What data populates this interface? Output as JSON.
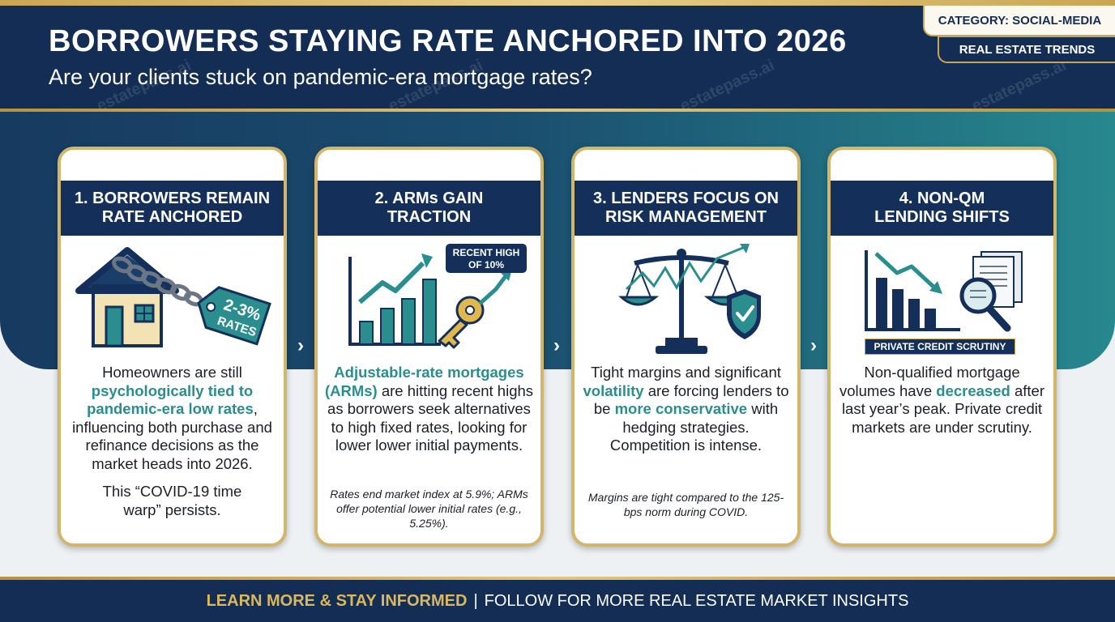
{
  "header": {
    "title": "BORROWERS STAYING RATE ANCHORED INTO 2026",
    "subtitle": "Are your clients stuck on pandemic-era mortgage rates?",
    "category": "CATEGORY: SOCIAL-MEDIA",
    "tag": "REAL ESTATE TRENDS"
  },
  "watermark": "estatepass.ai",
  "cards": [
    {
      "title_line1": "1. BORROWERS REMAIN",
      "title_line2": "RATE ANCHORED",
      "icon": "house-chain-tag-icon",
      "tag_line1": "2-3%",
      "tag_line2": "RATES",
      "body_pre": "Homeowners are still ",
      "body_hl": "psychologically tied to pandemic-era low rates",
      "body_post": ", influencing both purchase and refinance decisions as the market heads into 2026.",
      "extra": "This “COVID-19 time warp” persists."
    },
    {
      "title_line1": "2. ARMs GAIN",
      "title_line2": "TRACTION",
      "icon": "rising-chart-key-icon",
      "badge_line1": "RECENT HIGH",
      "badge_line2": "OF 10%",
      "body_hl": "Adjustable-rate mortgages (ARMs)",
      "body_post": " are hitting recent highs as borrowers seek alternatives to high fixed rates, looking for lower lower initial payments.",
      "note": "Rates end market index at 5.9%; ARMs offer potential lower initial rates (e.g., 5.25%)."
    },
    {
      "title_line1": "3. LENDERS FOCUS ON",
      "title_line2": "RISK MANAGEMENT",
      "icon": "scales-shield-icon",
      "body_pre": "Tight margins and significant ",
      "body_hl1": "volatility",
      "body_mid": " are forcing lenders to be ",
      "body_hl2": "more conservative",
      "body_post": " with hedging strategies. Competition is intense.",
      "note": "Margins are tight compared to the 125-bps norm during COVID."
    },
    {
      "title_line1": "4. NON-QM",
      "title_line2": "LENDING SHIFTS",
      "icon": "declining-chart-magnifier-icon",
      "label": "PRIVATE CREDIT SCRUTINY",
      "body_pre": "Non-qualified mortgage volumes have ",
      "body_hl": "decreased",
      "body_post": " after last year’s peak. Private credit markets are under scrutiny."
    }
  ],
  "footer": {
    "cta": "LEARN MORE & STAY INFORMED",
    "separator": "|",
    "text": "FOLLOW FOR MORE REAL ESTATE MARKET INSIGHTS"
  },
  "colors": {
    "navy": "#132d54",
    "gold": "#c9a654",
    "teal": "#2a8e8f"
  }
}
